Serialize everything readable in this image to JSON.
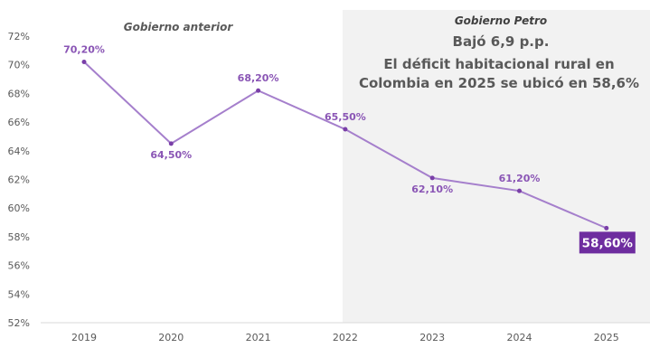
{
  "chart_data": {
    "type": "line",
    "categories": [
      "2019",
      "2020",
      "2021",
      "2022",
      "2023",
      "2024",
      "2025"
    ],
    "series": [
      {
        "values": [
          70.2,
          64.5,
          68.2,
          65.5,
          62.1,
          61.2,
          58.6
        ],
        "labels": [
          "70,20%",
          "64,50%",
          "68,20%",
          "65,50%",
          "62,10%",
          "61,20%",
          "58,60%"
        ]
      }
    ],
    "ylim": [
      52,
      72
    ],
    "yticks": [
      "52%",
      "54%",
      "56%",
      "58%",
      "60%",
      "62%",
      "64%",
      "66%",
      "68%",
      "70%",
      "72%"
    ],
    "yticks_values": [
      52,
      54,
      56,
      58,
      60,
      62,
      64,
      66,
      68,
      70,
      72
    ],
    "grid": false,
    "colors": {
      "line": "#a57fcc",
      "marker": "#7a3fa8",
      "label": "#8a55b5",
      "highlight_box": "#6e2d9f",
      "shaded_region": "#f2f2f2"
    },
    "annotations": {
      "left_header": "Gobierno anterior",
      "right_header": "Gobierno Petro",
      "highlight_title": "Bajó 6,9 p.p.",
      "highlight_line1": "El déficit habitacional rural en",
      "highlight_line2": "Colombia en 2025 se ubicó en 58,6%"
    },
    "shaded_from_category": "2022"
  }
}
